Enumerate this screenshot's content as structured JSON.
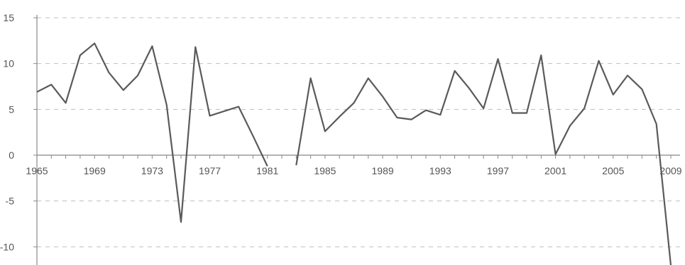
{
  "chart_data": {
    "type": "line",
    "title": "",
    "xlabel": "",
    "ylabel": "",
    "xlim": [
      1965,
      2009
    ],
    "ylim": [
      -12,
      15
    ],
    "y_ticks": [
      15,
      10,
      5,
      0,
      -5,
      -10
    ],
    "x_tick_labels": [
      "1965",
      "1969",
      "1973",
      "1977",
      "1981",
      "1985",
      "1989",
      "1993",
      "1997",
      "2001",
      "2005",
      "2009"
    ],
    "grid": "horizontal dashed",
    "x_axis_crosses_at": 0,
    "colors": {
      "line": "#5a5a5a",
      "grid": "#bfbfbf",
      "axis": "#888888",
      "text": "#555555"
    },
    "series": [
      {
        "x": [
          1965,
          1966,
          1967,
          1968,
          1969,
          1970,
          1971,
          1972,
          1973,
          1974,
          1975,
          1976,
          1977,
          1978,
          1979,
          1980,
          1981,
          1982,
          1983,
          1984,
          1985,
          1986,
          1987,
          1988,
          1989,
          1990,
          1991,
          1992,
          1993,
          1994,
          1995,
          1996,
          1997,
          1998,
          1999,
          2000,
          2001,
          2002,
          2003,
          2004,
          2005,
          2006,
          2007,
          2008,
          2009
        ],
        "values": [
          6.9,
          7.7,
          5.7,
          10.9,
          12.2,
          9,
          7.1,
          8.7,
          11.9,
          5.5,
          -7.3,
          11.8,
          4.3,
          4.8,
          5.3,
          2.1,
          -1.2,
          null,
          -1.1,
          8.4,
          2.6,
          4.2,
          5.7,
          8.4,
          6.4,
          4.1,
          3.9,
          4.9,
          4.4,
          9.2,
          7.3,
          5.1,
          10.5,
          4.6,
          4.6,
          10.9,
          0.1,
          3.2,
          5.1,
          10.3,
          6.6,
          8.7,
          7.2,
          3.4,
          -12
        ]
      }
    ]
  }
}
